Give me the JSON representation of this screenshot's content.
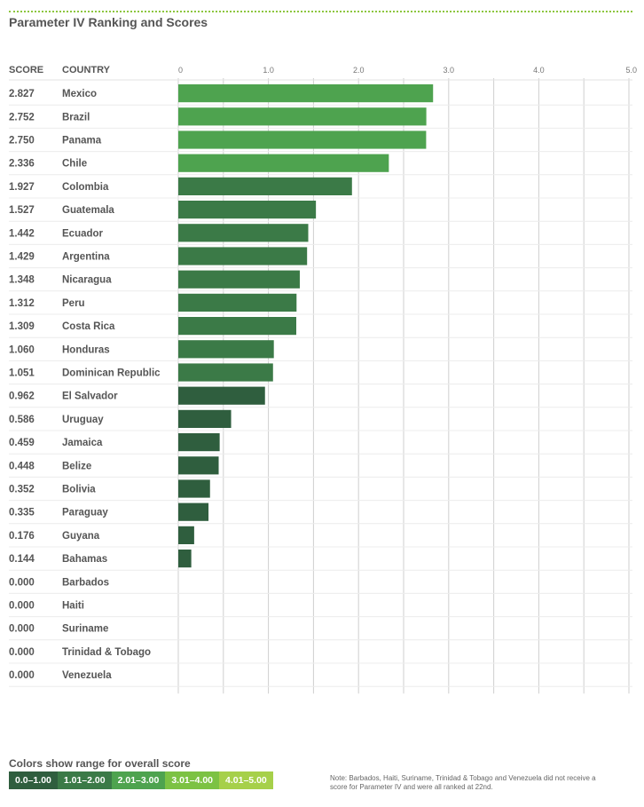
{
  "title": "Parameter IV Ranking and Scores",
  "headers": {
    "score": "SCORE",
    "country": "COUNTRY"
  },
  "chart_data": {
    "type": "bar",
    "orientation": "horizontal",
    "title": "Parameter IV Ranking and Scores",
    "xlim": [
      0,
      5
    ],
    "ticks": [
      "0",
      "1.0",
      "2.0",
      "3.0",
      "4.0",
      "5.0"
    ],
    "tick_values": [
      0,
      1,
      2,
      3,
      4,
      5
    ],
    "rows": [
      {
        "score": "2.827",
        "country": "Mexico",
        "value": 2.827
      },
      {
        "score": "2.752",
        "country": "Brazil",
        "value": 2.752
      },
      {
        "score": "2.750",
        "country": "Panama",
        "value": 2.75
      },
      {
        "score": "2.336",
        "country": "Chile",
        "value": 2.336
      },
      {
        "score": "1.927",
        "country": "Colombia",
        "value": 1.927
      },
      {
        "score": "1.527",
        "country": "Guatemala",
        "value": 1.527
      },
      {
        "score": "1.442",
        "country": "Ecuador",
        "value": 1.442
      },
      {
        "score": "1.429",
        "country": "Argentina",
        "value": 1.429
      },
      {
        "score": "1.348",
        "country": "Nicaragua",
        "value": 1.348
      },
      {
        "score": "1.312",
        "country": "Peru",
        "value": 1.312
      },
      {
        "score": "1.309",
        "country": "Costa Rica",
        "value": 1.309
      },
      {
        "score": "1.060",
        "country": "Honduras",
        "value": 1.06
      },
      {
        "score": "1.051",
        "country": "Dominican Republic",
        "value": 1.051
      },
      {
        "score": "0.962",
        "country": "El Salvador",
        "value": 0.962
      },
      {
        "score": "0.586",
        "country": "Uruguay",
        "value": 0.586
      },
      {
        "score": "0.459",
        "country": "Jamaica",
        "value": 0.459
      },
      {
        "score": "0.448",
        "country": "Belize",
        "value": 0.448
      },
      {
        "score": "0.352",
        "country": "Bolivia",
        "value": 0.352
      },
      {
        "score": "0.335",
        "country": "Paraguay",
        "value": 0.335
      },
      {
        "score": "0.176",
        "country": "Guyana",
        "value": 0.176
      },
      {
        "score": "0.144",
        "country": "Bahamas",
        "value": 0.144
      },
      {
        "score": "0.000",
        "country": "Barbados",
        "value": 0
      },
      {
        "score": "0.000",
        "country": "Haiti",
        "value": 0
      },
      {
        "score": "0.000",
        "country": "Suriname",
        "value": 0
      },
      {
        "score": "0.000",
        "country": "Trinidad & Tobago",
        "value": 0
      },
      {
        "score": "0.000",
        "country": "Venezuela",
        "value": 0
      }
    ],
    "bar_colors": {
      "0.0-1.00": "#2f5e3e",
      "1.01-2.00": "#3b7a47",
      "2.01-3.00": "#4ea34f",
      "3.01-4.00": "#7cc243",
      "4.01-5.00": "#a6d04a"
    }
  },
  "legend": {
    "title": "Colors show range for overall score",
    "items": [
      {
        "label": "0.0–1.00",
        "color": "#2f5e3e"
      },
      {
        "label": "1.01–2.00",
        "color": "#3b7a47"
      },
      {
        "label": "2.01–3.00",
        "color": "#4ea34f"
      },
      {
        "label": "3.01–4.00",
        "color": "#7cc243"
      },
      {
        "label": "4.01–5.00",
        "color": "#a6d04a"
      }
    ]
  },
  "note": "Note: Barbados, Haiti, Suriname, Trinidad & Tobago and Venezuela did not receive a score for Parameter IV and were all ranked at 22nd."
}
